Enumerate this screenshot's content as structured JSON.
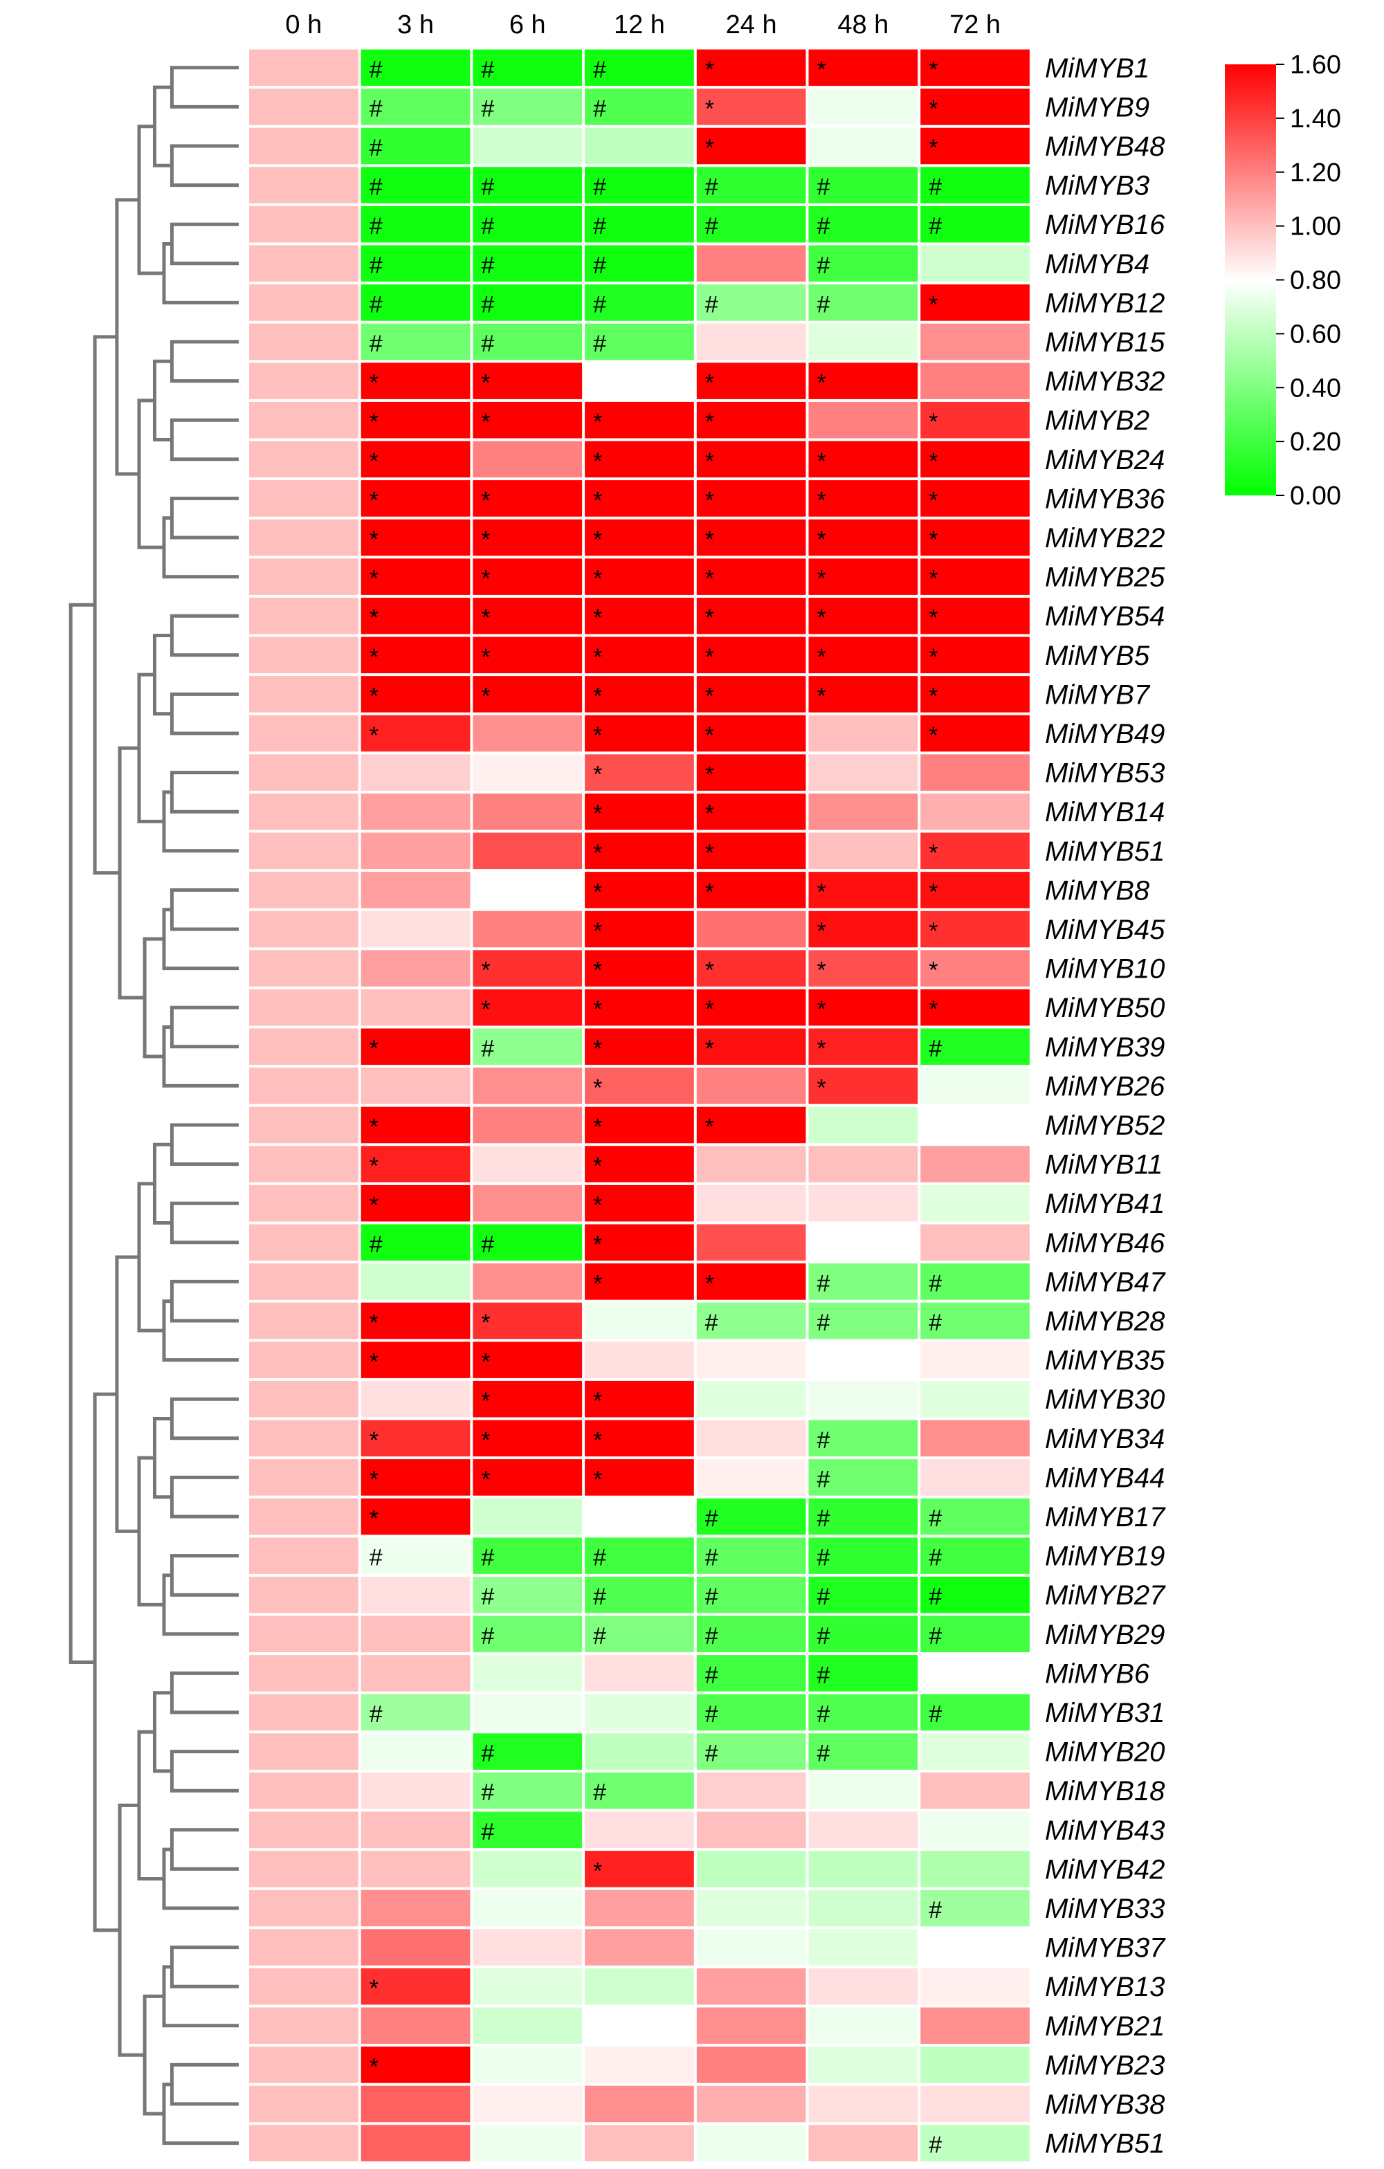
{
  "chart_data": {
    "type": "heatmap",
    "columns": [
      "0 h",
      "3 h",
      "6 h",
      "12 h",
      "24 h",
      "48 h",
      "72 h"
    ],
    "rows": [
      "MiMYB1",
      "MiMYB9",
      "MiMYB48",
      "MiMYB3",
      "MiMYB16",
      "MiMYB4",
      "MiMYB12",
      "MiMYB15",
      "MiMYB32",
      "MiMYB2",
      "MiMYB24",
      "MiMYB36",
      "MiMYB22",
      "MiMYB25",
      "MiMYB54",
      "MiMYB5",
      "MiMYB7",
      "MiMYB49",
      "MiMYB53",
      "MiMYB14",
      "MiMYB51",
      "MiMYB8",
      "MiMYB45",
      "MiMYB10",
      "MiMYB50",
      "MiMYB39",
      "MiMYB26",
      "MiMYB52",
      "MiMYB11",
      "MiMYB41",
      "MiMYB46",
      "MiMYB47",
      "MiMYB28",
      "MiMYB35",
      "MiMYB30",
      "MiMYB34",
      "MiMYB44",
      "MiMYB17",
      "MiMYB19",
      "MiMYB27",
      "MiMYB29",
      "MiMYB6",
      "MiMYB31",
      "MiMYB20",
      "MiMYB18",
      "MiMYB43",
      "MiMYB42",
      "MiMYB33",
      "MiMYB37",
      "MiMYB13",
      "MiMYB21",
      "MiMYB23",
      "MiMYB38",
      "MiMYB51"
    ],
    "values": [
      [
        1,
        0.05,
        0.05,
        0.05,
        1.6,
        1.6,
        1.6
      ],
      [
        1,
        0.3,
        0.4,
        0.25,
        1.35,
        0.75,
        1.6
      ],
      [
        1,
        0.15,
        0.65,
        0.6,
        1.6,
        0.75,
        1.6
      ],
      [
        1,
        0.05,
        0.05,
        0.05,
        0.15,
        0.15,
        0.05
      ],
      [
        1,
        0.05,
        0.05,
        0.05,
        0.1,
        0.1,
        0.05
      ],
      [
        1,
        0.05,
        0.05,
        0.05,
        1.2,
        0.2,
        0.65
      ],
      [
        1,
        0.05,
        0.05,
        0.1,
        0.45,
        0.35,
        1.6
      ],
      [
        1,
        0.35,
        0.3,
        0.3,
        0.9,
        0.7,
        1.15
      ],
      [
        1,
        1.6,
        1.6,
        0.8,
        1.6,
        1.6,
        1.2
      ],
      [
        1,
        1.6,
        1.6,
        1.6,
        1.6,
        1.2,
        1.45
      ],
      [
        1,
        1.6,
        1.2,
        1.6,
        1.6,
        1.6,
        1.6
      ],
      [
        1,
        1.6,
        1.6,
        1.6,
        1.6,
        1.6,
        1.6
      ],
      [
        1,
        1.6,
        1.6,
        1.6,
        1.6,
        1.6,
        1.6
      ],
      [
        1,
        1.6,
        1.6,
        1.6,
        1.6,
        1.6,
        1.6
      ],
      [
        1,
        1.6,
        1.6,
        1.6,
        1.6,
        1.6,
        1.6
      ],
      [
        1,
        1.6,
        1.6,
        1.6,
        1.6,
        1.6,
        1.6
      ],
      [
        1,
        1.6,
        1.6,
        1.6,
        1.6,
        1.6,
        1.6
      ],
      [
        1,
        1.5,
        1.15,
        1.6,
        1.6,
        1.0,
        1.6
      ],
      [
        1,
        0.95,
        0.85,
        1.35,
        1.6,
        0.95,
        1.2
      ],
      [
        1,
        1.1,
        1.2,
        1.6,
        1.6,
        1.15,
        1.05
      ],
      [
        1,
        1.1,
        1.35,
        1.6,
        1.6,
        1.0,
        1.45
      ],
      [
        1,
        1.1,
        0.8,
        1.6,
        1.6,
        1.55,
        1.55
      ],
      [
        1,
        0.9,
        1.2,
        1.6,
        1.25,
        1.55,
        1.45
      ],
      [
        1,
        1.1,
        1.45,
        1.6,
        1.45,
        1.35,
        1.2
      ],
      [
        1,
        1.0,
        1.55,
        1.6,
        1.6,
        1.6,
        1.6
      ],
      [
        1,
        1.6,
        0.45,
        1.6,
        1.55,
        1.5,
        0.1
      ],
      [
        1,
        1.0,
        1.15,
        1.3,
        1.2,
        1.45,
        0.75
      ],
      [
        1,
        1.6,
        1.2,
        1.6,
        1.6,
        0.65,
        0.8
      ],
      [
        1,
        1.5,
        0.9,
        1.6,
        1.0,
        1.0,
        1.1
      ],
      [
        1,
        1.6,
        1.15,
        1.6,
        0.9,
        0.9,
        0.7
      ],
      [
        1,
        0.05,
        0.05,
        1.6,
        1.35,
        0.8,
        1.0
      ],
      [
        1,
        0.65,
        1.15,
        1.6,
        1.6,
        0.4,
        0.3
      ],
      [
        1,
        1.6,
        1.45,
        0.75,
        0.45,
        0.4,
        0.35
      ],
      [
        1,
        1.6,
        1.6,
        0.9,
        0.85,
        0.8,
        0.85
      ],
      [
        1,
        0.9,
        1.6,
        1.6,
        0.7,
        0.75,
        0.7
      ],
      [
        1,
        1.45,
        1.6,
        1.6,
        0.9,
        0.35,
        1.15
      ],
      [
        1,
        1.6,
        1.6,
        1.6,
        0.85,
        0.35,
        0.9
      ],
      [
        1,
        1.6,
        0.65,
        0.8,
        0.1,
        0.15,
        0.3
      ],
      [
        1,
        0.75,
        0.2,
        0.2,
        0.3,
        0.15,
        0.2
      ],
      [
        1,
        0.9,
        0.45,
        0.25,
        0.3,
        0.1,
        0.05
      ],
      [
        1,
        1.0,
        0.35,
        0.4,
        0.25,
        0.15,
        0.2
      ],
      [
        1,
        1.0,
        0.7,
        0.9,
        0.2,
        0.1,
        0.8
      ],
      [
        1,
        0.5,
        0.75,
        0.7,
        0.25,
        0.25,
        0.2
      ],
      [
        1,
        0.75,
        0.1,
        0.6,
        0.4,
        0.3,
        0.7
      ],
      [
        1,
        0.9,
        0.4,
        0.35,
        0.95,
        0.75,
        1.0
      ],
      [
        1,
        1.0,
        0.15,
        0.9,
        1.0,
        0.9,
        0.75
      ],
      [
        1,
        1.0,
        0.65,
        1.5,
        0.6,
        0.6,
        0.55
      ],
      [
        1,
        1.15,
        0.75,
        1.1,
        0.7,
        0.65,
        0.5
      ],
      [
        1,
        1.25,
        0.9,
        1.1,
        0.75,
        0.7,
        0.8
      ],
      [
        1,
        1.45,
        0.7,
        0.65,
        1.1,
        0.9,
        0.85
      ],
      [
        1,
        1.2,
        0.65,
        0.8,
        1.15,
        0.75,
        1.15
      ],
      [
        1,
        1.6,
        0.75,
        0.85,
        1.2,
        0.7,
        0.6
      ],
      [
        1,
        1.3,
        0.85,
        1.15,
        1.05,
        0.9,
        0.9
      ],
      [
        1,
        1.3,
        0.75,
        1.0,
        0.75,
        1.0,
        0.6
      ]
    ],
    "marks": [
      [
        "",
        "#",
        "#",
        "#",
        "*",
        "*",
        "*"
      ],
      [
        "",
        "#",
        "#",
        "#",
        "*",
        "",
        "*"
      ],
      [
        "",
        "#",
        "",
        "",
        "*",
        "",
        "*"
      ],
      [
        "",
        "#",
        "#",
        "#",
        "#",
        "#",
        "#"
      ],
      [
        "",
        "#",
        "#",
        "#",
        "#",
        "#",
        "#"
      ],
      [
        "",
        "#",
        "#",
        "#",
        "",
        "#",
        ""
      ],
      [
        "",
        "#",
        "#",
        "#",
        "#",
        "#",
        "*"
      ],
      [
        "",
        "#",
        "#",
        "#",
        "",
        "",
        ""
      ],
      [
        "",
        "*",
        "*",
        "",
        "*",
        "*",
        ""
      ],
      [
        "",
        "*",
        "*",
        "*",
        "*",
        "",
        "*"
      ],
      [
        "",
        "*",
        "",
        "*",
        "*",
        "*",
        "*"
      ],
      [
        "",
        "*",
        "*",
        "*",
        "*",
        "*",
        "*"
      ],
      [
        "",
        "*",
        "*",
        "*",
        "*",
        "*",
        "*"
      ],
      [
        "",
        "*",
        "*",
        "*",
        "*",
        "*",
        "*"
      ],
      [
        "",
        "*",
        "*",
        "*",
        "*",
        "*",
        "*"
      ],
      [
        "",
        "*",
        "*",
        "*",
        "*",
        "*",
        "*"
      ],
      [
        "",
        "*",
        "*",
        "*",
        "*",
        "*",
        "*"
      ],
      [
        "",
        "*",
        "",
        "*",
        "*",
        "",
        "*"
      ],
      [
        "",
        "",
        "",
        "*",
        "*",
        "",
        ""
      ],
      [
        "",
        "",
        "",
        "*",
        "*",
        "",
        ""
      ],
      [
        "",
        "",
        "",
        "*",
        "*",
        "",
        "*"
      ],
      [
        "",
        "",
        "",
        "*",
        "*",
        "*",
        "*"
      ],
      [
        "",
        "",
        "",
        "*",
        "",
        "*",
        "*"
      ],
      [
        "",
        "",
        "*",
        "*",
        "*",
        "*",
        "*"
      ],
      [
        "",
        "",
        "*",
        "*",
        "*",
        "*",
        "*"
      ],
      [
        "",
        "*",
        "#",
        "*",
        "*",
        "*",
        "#"
      ],
      [
        "",
        "",
        "",
        "*",
        "",
        "*",
        ""
      ],
      [
        "",
        "*",
        "",
        "*",
        "*",
        "",
        ""
      ],
      [
        "",
        "*",
        "",
        "*",
        "",
        "",
        ""
      ],
      [
        "",
        "*",
        "",
        "*",
        "",
        "",
        ""
      ],
      [
        "",
        "#",
        "#",
        "*",
        "",
        "",
        ""
      ],
      [
        "",
        "",
        "",
        "*",
        "*",
        "#",
        "#"
      ],
      [
        "",
        "*",
        "*",
        "",
        "#",
        "#",
        "#"
      ],
      [
        "",
        "*",
        "*",
        "",
        "",
        "",
        ""
      ],
      [
        "",
        "",
        "*",
        "*",
        "",
        "",
        ""
      ],
      [
        "",
        "*",
        "*",
        "*",
        "",
        "#",
        ""
      ],
      [
        "",
        "*",
        "*",
        "*",
        "",
        "#",
        ""
      ],
      [
        "",
        "*",
        "",
        "",
        "#",
        "#",
        "#"
      ],
      [
        "",
        "#",
        "#",
        "#",
        "#",
        "#",
        "#"
      ],
      [
        "",
        "",
        "#",
        "#",
        "#",
        "#",
        "#"
      ],
      [
        "",
        "",
        "#",
        "#",
        "#",
        "#",
        "#"
      ],
      [
        "",
        "",
        "",
        "",
        "#",
        "#",
        ""
      ],
      [
        "",
        "#",
        "",
        "",
        "#",
        "#",
        "#"
      ],
      [
        "",
        "",
        "#",
        "",
        "#",
        "#",
        ""
      ],
      [
        "",
        "",
        "#",
        "#",
        "",
        "",
        ""
      ],
      [
        "",
        "",
        "#",
        "",
        "",
        "",
        ""
      ],
      [
        "",
        "",
        "",
        "*",
        "",
        "",
        ""
      ],
      [
        "",
        "",
        "",
        "",
        "",
        "",
        "#"
      ],
      [
        "",
        "",
        "",
        "",
        "",
        "",
        ""
      ],
      [
        "",
        "*",
        "",
        "",
        "",
        "",
        ""
      ],
      [
        "",
        "",
        "",
        "",
        "",
        "",
        ""
      ],
      [
        "",
        "*",
        "",
        "",
        "",
        "",
        ""
      ],
      [
        "",
        "",
        "",
        "",
        "",
        "",
        ""
      ],
      [
        "",
        "",
        "",
        "",
        "",
        "",
        "#"
      ]
    ],
    "colorbar": {
      "min": 0.0,
      "mid": 0.8,
      "max": 1.6,
      "low_color": "#00ff00",
      "mid_color": "#ffffff",
      "high_color": "#ff0000",
      "ticks": [
        "1.60",
        "1.40",
        "1.20",
        "1.00",
        "0.80",
        "0.60",
        "0.40",
        "0.20",
        "0.00"
      ]
    },
    "dendrogram": "left",
    "title": "",
    "xlabel": "",
    "ylabel": ""
  }
}
